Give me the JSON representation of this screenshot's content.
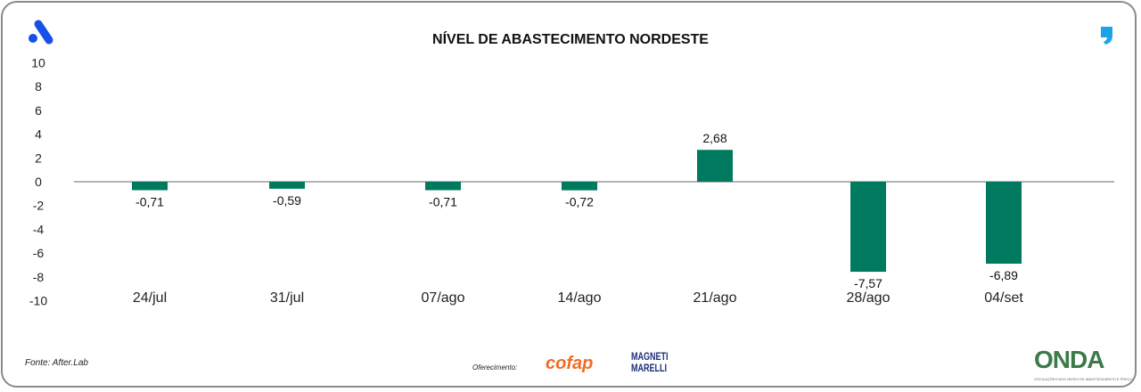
{
  "chart_data": {
    "type": "bar",
    "title": "NÍVEL DE ABASTECIMENTO NORDESTE",
    "categories": [
      "24/jul",
      "31/jul",
      "07/ago",
      "14/ago",
      "21/ago",
      "28/ago",
      "04/set"
    ],
    "values": [
      -0.71,
      -0.59,
      -0.71,
      -0.72,
      2.68,
      -7.57,
      -6.89
    ],
    "value_labels": [
      "-0,71",
      "-0,59",
      "-0,71",
      "-0,72",
      "2,68",
      "-7,57",
      "-6,89"
    ],
    "yticks": [
      10,
      8,
      6,
      4,
      2,
      0,
      -2,
      -4,
      -6,
      -8,
      -10
    ],
    "ylim": [
      -10,
      10
    ],
    "xlabel": "",
    "ylabel": "",
    "grid": false,
    "bar_color": "#007A5E"
  },
  "footer": {
    "source": "Fonte: After.Lab",
    "offer_label": "Oferecimento:",
    "sponsor1": "cofap",
    "sponsor2_line1": "MAGNETI",
    "sponsor2_line2": "MARELLI",
    "brand": "ONDA",
    "brand_sub": "OSCILAÇÕES NOS NÍVEIS DE ABASTECIMENTO E PREÇO"
  }
}
